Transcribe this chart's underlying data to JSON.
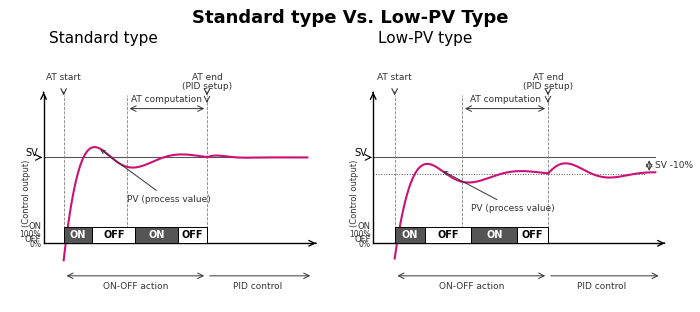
{
  "title": "Standard type Vs. Low-PV Type",
  "title_fontsize": 13,
  "subtitle_left": "Standard type",
  "subtitle_right": "Low-PV type",
  "subtitle_fontsize": 11,
  "bg_color": "#ffffff",
  "line_color": "#cc1177",
  "sv_color": "#555555",
  "annotation_color": "#333333",
  "on_box_color": "#555555",
  "off_box_color": "#ffffff"
}
